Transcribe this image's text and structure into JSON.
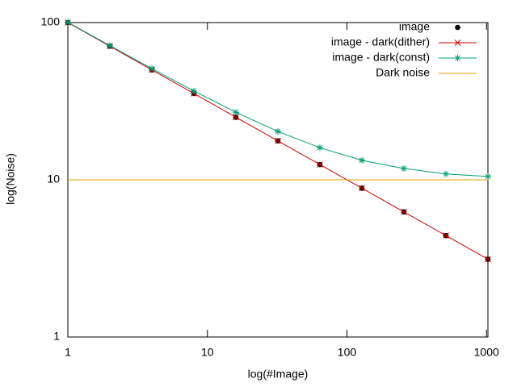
{
  "chart_data": {
    "type": "line",
    "x_label": "log(#Image)",
    "y_label": "log(Noise)",
    "x": [
      1,
      2,
      4,
      8,
      16,
      32,
      64,
      128,
      256,
      512,
      1024
    ],
    "xlim": [
      1,
      1024
    ],
    "ylim": [
      1,
      100
    ],
    "xticks": [
      1,
      10,
      100,
      1000
    ],
    "yticks": [
      1,
      10,
      100
    ],
    "log_x": true,
    "log_y": true,
    "grid": false,
    "legend": "top-right",
    "series": [
      {
        "name": "image",
        "color": "#000000",
        "marker": "dot",
        "line": false,
        "values": [
          100,
          70.7,
          50,
          35.4,
          25,
          17.7,
          12.5,
          8.84,
          6.25,
          4.42,
          3.125
        ]
      },
      {
        "name": "image - dark(dither)",
        "color": "#cc0000",
        "marker": "x",
        "line": true,
        "values": [
          100,
          70.7,
          50,
          35.4,
          25,
          17.7,
          12.5,
          8.84,
          6.25,
          4.42,
          3.125
        ]
      },
      {
        "name": "image - dark(const)",
        "color": "#009e73",
        "marker": "star",
        "line": true,
        "values": [
          100.5,
          71.4,
          51,
          36.7,
          26.9,
          20.3,
          16,
          13.3,
          11.8,
          10.9,
          10.5
        ]
      },
      {
        "name": "Dark noise",
        "color": "#e69f00",
        "marker": "none",
        "line": true,
        "values": [
          10,
          10,
          10,
          10,
          10,
          10,
          10,
          10,
          10,
          10,
          10
        ]
      }
    ]
  }
}
